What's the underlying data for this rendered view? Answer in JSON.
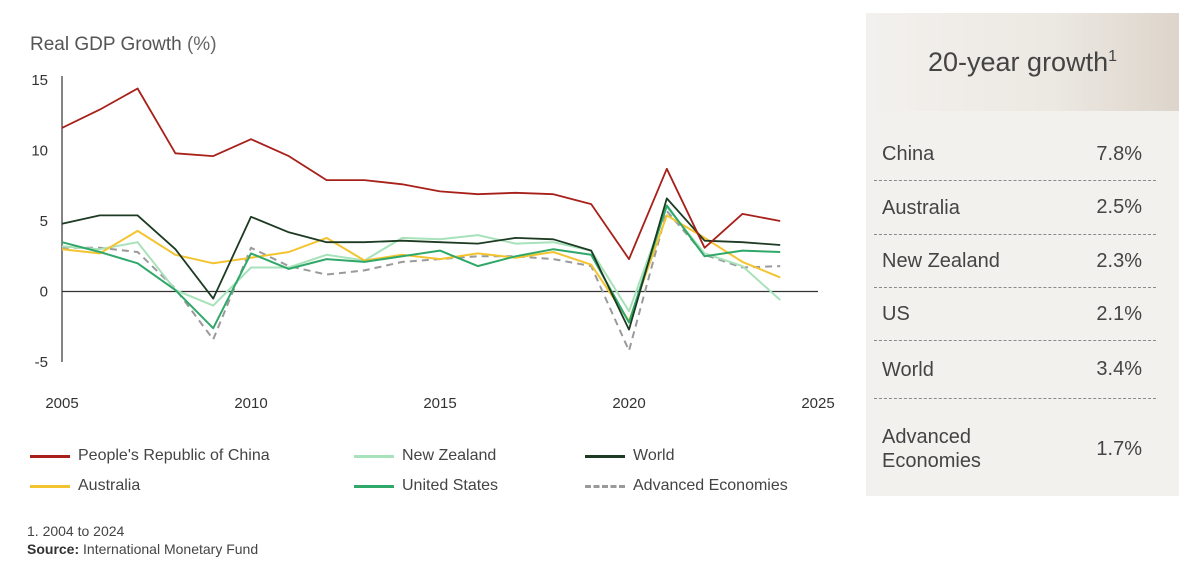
{
  "chart_title": "Real GDP Growth",
  "chart_unit": "(%)",
  "chart_data": {
    "type": "line",
    "title": "Real GDP Growth (%)",
    "xlim": [
      2005,
      2025
    ],
    "ylim": [
      -5,
      15
    ],
    "x_ticks": [
      "2005",
      "2010",
      "2015",
      "2020",
      "2025"
    ],
    "y_ticks": [
      "15",
      "10",
      "5",
      "0",
      "-5"
    ],
    "x": [
      2004,
      2005,
      2006,
      2007,
      2008,
      2009,
      2010,
      2011,
      2012,
      2013,
      2014,
      2015,
      2016,
      2017,
      2018,
      2019,
      2020,
      2021,
      2022,
      2023,
      2024
    ],
    "series": [
      {
        "name": "People's Republic of China",
        "color": "#a8201a",
        "dash": false,
        "values": [
          11.6,
          12.9,
          14.4,
          9.8,
          9.6,
          10.8,
          9.6,
          7.9,
          7.9,
          7.6,
          7.1,
          6.9,
          7.0,
          6.9,
          6.2,
          2.3,
          8.7,
          3.1,
          5.5,
          5.0,
          null
        ]
      },
      {
        "name": "New Zealand",
        "color": "#a8e2ba",
        "dash": false,
        "values": [
          3.2,
          3.0,
          3.5,
          0.1,
          -1.0,
          1.7,
          1.7,
          2.6,
          2.2,
          3.8,
          3.7,
          4.0,
          3.4,
          3.5,
          2.9,
          -1.4,
          6.0,
          2.7,
          1.8,
          -0.6,
          null
        ]
      },
      {
        "name": "World",
        "color": "#1c3b22",
        "dash": false,
        "values": [
          4.8,
          5.4,
          5.4,
          3.0,
          -0.5,
          5.3,
          4.2,
          3.5,
          3.5,
          3.6,
          3.5,
          3.4,
          3.8,
          3.7,
          2.9,
          -2.7,
          6.6,
          3.6,
          3.5,
          3.3,
          null
        ]
      },
      {
        "name": "Australia",
        "color": "#f4c430",
        "dash": false,
        "values": [
          3.0,
          2.7,
          4.3,
          2.6,
          2.0,
          2.4,
          2.8,
          3.8,
          2.2,
          2.6,
          2.3,
          2.7,
          2.4,
          2.8,
          1.9,
          -2.1,
          5.4,
          3.8,
          2.1,
          1.0,
          null
        ]
      },
      {
        "name": "United States",
        "color": "#2fa86a",
        "dash": false,
        "values": [
          3.5,
          2.8,
          2.0,
          0.1,
          -2.6,
          2.7,
          1.6,
          2.3,
          2.1,
          2.5,
          2.9,
          1.8,
          2.5,
          3.0,
          2.6,
          -2.2,
          6.1,
          2.5,
          2.9,
          2.8,
          null
        ]
      },
      {
        "name": "Advanced Economies",
        "color": "#9a9a9a",
        "dash": true,
        "values": [
          3.1,
          3.1,
          2.8,
          0.2,
          -3.4,
          3.1,
          1.8,
          1.2,
          1.5,
          2.1,
          2.3,
          2.5,
          2.5,
          2.3,
          1.8,
          -4.2,
          5.7,
          2.6,
          1.7,
          1.8,
          null
        ]
      }
    ]
  },
  "legend": [
    {
      "label": "People's Republic of China",
      "color": "#a8201a",
      "dash": false
    },
    {
      "label": "New Zealand",
      "color": "#a8e2ba",
      "dash": false
    },
    {
      "label": "World",
      "color": "#1c3b22",
      "dash": false
    },
    {
      "label": "Australia",
      "color": "#f4c430",
      "dash": false
    },
    {
      "label": "United States",
      "color": "#2fa86a",
      "dash": false
    },
    {
      "label": "Advanced Economies",
      "color": "#9a9a9a",
      "dash": true
    }
  ],
  "footnote": {
    "note": "1. 2004 to 2024",
    "source_label": "Source:",
    "source_text": "International Monetary Fund"
  },
  "panel": {
    "title": "20-year growth",
    "title_sup": "1",
    "rows": [
      {
        "label": "China",
        "value": "7.8%"
      },
      {
        "label": "Australia",
        "value": "2.5%"
      },
      {
        "label": "New Zealand",
        "value": "2.3%"
      },
      {
        "label": "US",
        "value": "2.1%"
      },
      {
        "label": "World",
        "value": "3.4%"
      },
      {
        "label": "Advanced Economies",
        "value": "1.7%"
      }
    ]
  }
}
